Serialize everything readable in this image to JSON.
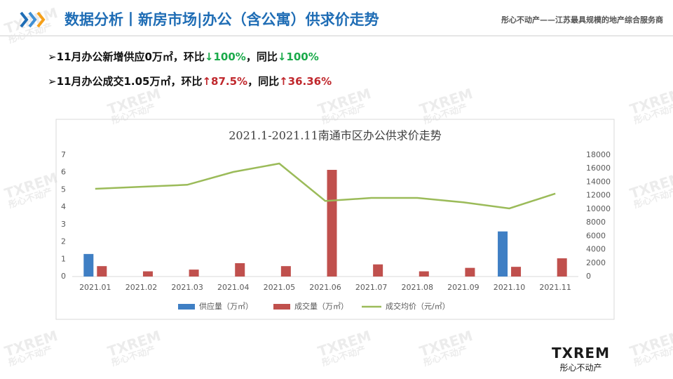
{
  "header": {
    "title": "数据分析丨新房市场|办公（含公寓）供求价走势",
    "tagline": "彤心不动产——江苏最具规模的地产综合服务商"
  },
  "bullets": [
    [
      "11月办公新增供应0万㎡，环比",
      "↓100%",
      "，同比",
      "↓100%"
    ],
    [
      "11月办公成交1.05万㎡，环比",
      "↑87.5%",
      "，同比",
      "↑36.36%"
    ]
  ],
  "logo": {
    "name": "TXREM",
    "sub": "彤心不动产"
  },
  "chart_data": {
    "type": "bar-line",
    "title": "2021.1-2021.11南通市区办公供求价走势",
    "categories": [
      "2021.01",
      "2021.02",
      "2021.03",
      "2021.04",
      "2021.05",
      "2021.06",
      "2021.07",
      "2021.08",
      "2021.09",
      "2021.10",
      "2021.11"
    ],
    "series": [
      {
        "name": "供应量（万㎡）",
        "color": "#3f7fc4",
        "type": "bar",
        "values": [
          1.3,
          0,
          0,
          0,
          0,
          0,
          0,
          0,
          0,
          2.6,
          0
        ]
      },
      {
        "name": "成交量（万㎡）",
        "color": "#c0504d",
        "type": "bar",
        "values": [
          0.6,
          0.3,
          0.4,
          0.77,
          0.6,
          6.15,
          0.7,
          0.3,
          0.5,
          0.56,
          1.05
        ]
      },
      {
        "name": "成交均价（元/㎡）",
        "color": "#9bbb59",
        "type": "line",
        "axis": "y2",
        "values": [
          13000,
          13300,
          13600,
          15500,
          16750,
          11200,
          11650,
          11650,
          11000,
          10100,
          12300
        ]
      }
    ],
    "ylim": [
      0,
      7
    ],
    "yticks": [
      0,
      1,
      2,
      3,
      4,
      5,
      6,
      7
    ],
    "y2lim": [
      0,
      18000
    ],
    "y2ticks": [
      0,
      2000,
      4000,
      6000,
      8000,
      10000,
      12000,
      14000,
      16000,
      18000
    ],
    "legend": "bottom",
    "grid": false
  }
}
